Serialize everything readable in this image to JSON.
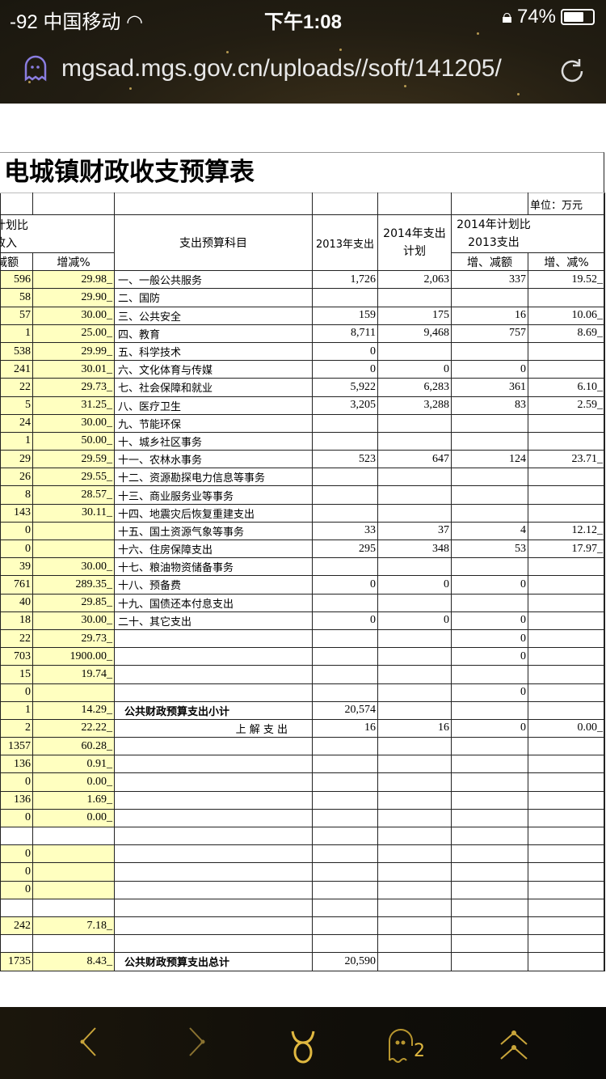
{
  "status": {
    "signal": "-92",
    "carrier": "中国移动",
    "time": "下午1:08",
    "battery": "74%",
    "battery_level": 0.74
  },
  "browser": {
    "url": "mgsad.mgs.gov.cn/uploads//soft/141205/",
    "icons": [
      "ghost-privacy-icon",
      "reload-icon"
    ]
  },
  "sheet": {
    "title": "电城镇财政收支预算表",
    "unit": "单位：万元",
    "headers": {
      "left_group": "计划比",
      "left_group2": "收入",
      "left_a": "减额",
      "left_b": "增减%",
      "subject": "支出预算科目",
      "y2013": "2013年支出",
      "y2014": "2014年支出计划",
      "cmp": "2014年计划比2013支出",
      "cmp_amount": "增、减额",
      "cmp_pct": "增、减%"
    },
    "highlight_color": "#ffffc0",
    "rows": [
      {
        "a": "596",
        "b": "29.98_",
        "s": "一、一般公共服务",
        "d": "1,726",
        "e": "2,063",
        "f": "337",
        "g": "19.52_"
      },
      {
        "a": "58",
        "b": "29.90_",
        "s": "二、国防"
      },
      {
        "a": "57",
        "b": "30.00_",
        "s": "三、公共安全",
        "d": "159",
        "e": "175",
        "f": "16",
        "g": "10.06_"
      },
      {
        "a": "1",
        "b": "25.00_",
        "s": "四、教育",
        "d": "8,711",
        "e": "9,468",
        "f": "757",
        "g": "8.69_"
      },
      {
        "a": "538",
        "b": "29.99_",
        "s": "五、科学技术",
        "d": "0"
      },
      {
        "a": "241",
        "b": "30.01_",
        "s": "六、文化体育与传媒",
        "d": "0",
        "e": "0",
        "f": "0"
      },
      {
        "a": "22",
        "b": "29.73_",
        "s": "七、社会保障和就业",
        "d": "5,922",
        "e": "6,283",
        "f": "361",
        "g": "6.10_"
      },
      {
        "a": "5",
        "b": "31.25_",
        "s": "八、医疗卫生",
        "d": "3,205",
        "e": "3,288",
        "f": "83",
        "g": "2.59_"
      },
      {
        "a": "24",
        "b": "30.00_",
        "s": "九、节能环保"
      },
      {
        "a": "1",
        "b": "50.00_",
        "s": "十、城乡社区事务"
      },
      {
        "a": "29",
        "b": "29.59_",
        "s": "十一、农林水事务",
        "d": "523",
        "e": "647",
        "f": "124",
        "g": "23.71_"
      },
      {
        "a": "26",
        "b": "29.55_",
        "s": "十二、资源勘探电力信息等事务"
      },
      {
        "a": "8",
        "b": "28.57_",
        "s": "十三、商业服务业等事务"
      },
      {
        "a": "143",
        "b": "30.11_",
        "s": "十四、地震灾后恢复重建支出"
      },
      {
        "a": "0",
        "b": "",
        "s": "十五、国土资源气象等事务",
        "d": "33",
        "e": "37",
        "f": "4",
        "g": "12.12_"
      },
      {
        "a": "0",
        "b": "",
        "s": "十六、住房保障支出",
        "d": "295",
        "e": "348",
        "f": "53",
        "g": "17.97_"
      },
      {
        "a": "39",
        "b": "30.00_",
        "s": "十七、粮油物资储备事务"
      },
      {
        "a": "761",
        "b": "289.35_",
        "s": "十八、预备费",
        "d": "0",
        "e": "0",
        "f": "0"
      },
      {
        "a": "40",
        "b": "29.85_",
        "s": "十九、国债还本付息支出"
      },
      {
        "a": "18",
        "b": "30.00_",
        "s": "二十、其它支出",
        "d": "0",
        "e": "0",
        "f": "0"
      },
      {
        "a": "22",
        "b": "29.73_",
        "f": "0"
      },
      {
        "a": "703",
        "b": "1900.00_",
        "f": "0"
      },
      {
        "a": "15",
        "b": "19.74_"
      },
      {
        "a": "0",
        "b": "",
        "f": "0"
      },
      {
        "a": "1",
        "b": "14.29_",
        "s": "公共财政预算支出小计",
        "d": "20,574",
        "bold": true
      },
      {
        "a": "2",
        "b": "22.22_",
        "s": "上 解 支 出",
        "d": "16",
        "e": "16",
        "f": "0",
        "g": "0.00_",
        "center": true
      },
      {
        "a": "1357",
        "b": "60.28_"
      },
      {
        "a": "136",
        "b": "0.91_"
      },
      {
        "a": "0",
        "b": "0.00_"
      },
      {
        "a": "136",
        "b": "1.69_"
      },
      {
        "a": "0",
        "b": "0.00_"
      },
      {
        "white": true
      },
      {
        "a": "0",
        "b": ""
      },
      {
        "a": "0",
        "b": ""
      },
      {
        "a": "0",
        "b": ""
      },
      {
        "white": true
      },
      {
        "a": "242",
        "b": "7.18_"
      },
      {
        "white": true
      },
      {
        "a": "1735",
        "b": "8.43_",
        "s": "公共财政预算支出总计",
        "d": "20,590",
        "bold": true
      }
    ]
  },
  "toolbar": {
    "icons": [
      "back-icon",
      "forward-icon",
      "taurus-home-icon",
      "ghost-tabs-icon",
      "scroll-top-icon"
    ],
    "tab_count": "2"
  }
}
